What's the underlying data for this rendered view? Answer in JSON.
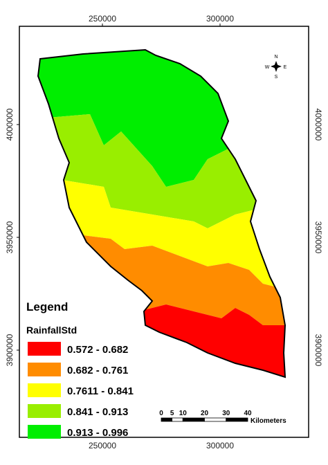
{
  "map": {
    "x_ticks": [
      250000,
      300000
    ],
    "y_ticks": [
      4000000,
      3950000,
      3900000
    ],
    "compass": {
      "n": "N",
      "s": "S",
      "e": "E",
      "w": "W"
    },
    "legend": {
      "title": "Legend",
      "field": "RainfallStd",
      "classes": [
        {
          "label": "0.572 - 0.682",
          "color": "#ff0000"
        },
        {
          "label": "0.682 - 0.761",
          "color": "#ff8c00"
        },
        {
          "label": "0.7611 - 0.841",
          "color": "#ffff00"
        },
        {
          "label": "0.841 - 0.913",
          "color": "#99ee00"
        },
        {
          "label": "0.913 - 0.996",
          "color": "#00ee00"
        }
      ]
    },
    "scale_bar": {
      "ticks": [
        0,
        5,
        10,
        20,
        30,
        40
      ],
      "unit": "Kilometers"
    }
  }
}
